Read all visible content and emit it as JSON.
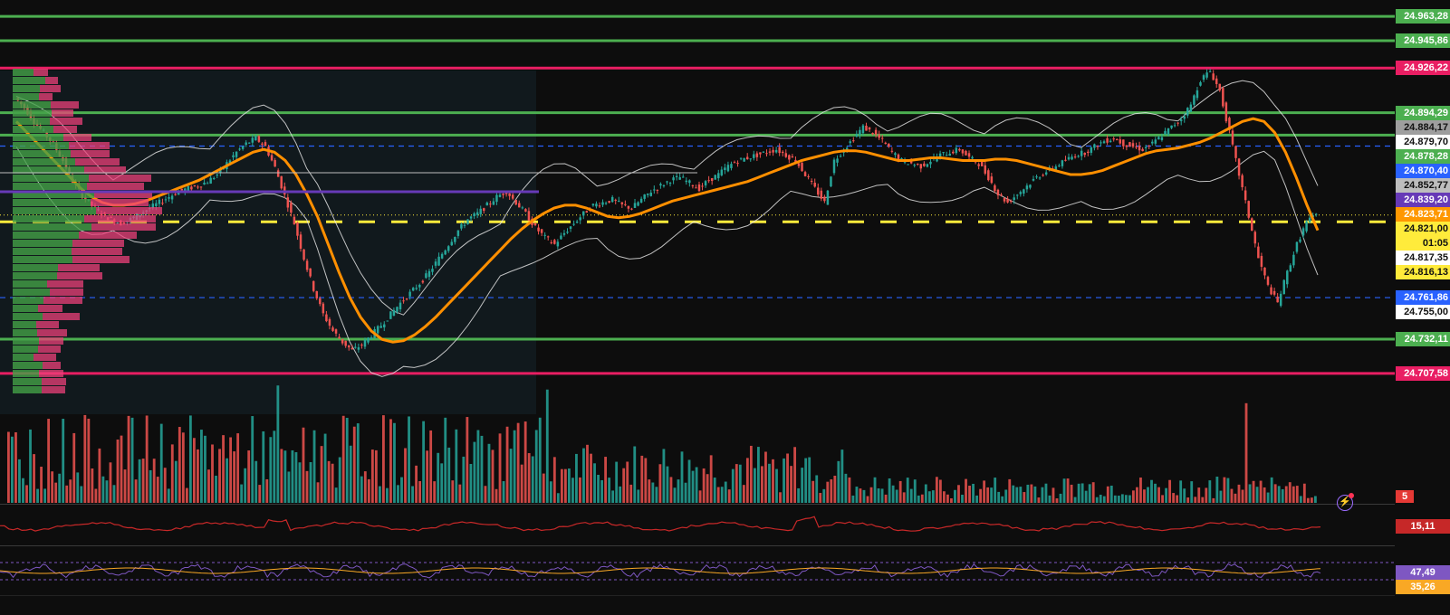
{
  "price_labels": [
    {
      "text": "24.963,28",
      "bg": "#4caf50",
      "fg": "#ffffff",
      "price": 24963.28
    },
    {
      "text": "24.945,86",
      "bg": "#4caf50",
      "fg": "#ffffff",
      "price": 24945.86
    },
    {
      "text": "24.926,22",
      "bg": "#e91e63",
      "fg": "#ffffff",
      "price": 24926.22
    },
    {
      "text": "24.894,29",
      "bg": "#4caf50",
      "fg": "#ffffff",
      "price": 24894.29
    },
    {
      "text": "24.884,17",
      "bg": "#9e9e9e",
      "fg": "#111111",
      "price": 24884.17
    },
    {
      "text": "24.879,70",
      "bg": "#ffffff",
      "fg": "#111111",
      "price": 24879.7
    },
    {
      "text": "24.878,28",
      "bg": "#4caf50",
      "fg": "#ffffff",
      "price": 24878.28
    },
    {
      "text": "24.870,40",
      "bg": "#2962ff",
      "fg": "#ffffff",
      "price": 24870.4
    },
    {
      "text": "24.852,77",
      "bg": "#bdbdbd",
      "fg": "#111111",
      "price": 24852.77
    },
    {
      "text": "24.839,20",
      "bg": "#673ab7",
      "fg": "#ffffff",
      "price": 24839.2
    },
    {
      "text": "24.823,71",
      "bg": "#ff9800",
      "fg": "#ffffff",
      "price": 24823.71
    },
    {
      "text": "24.821,00",
      "bg": "#ffeb3b",
      "fg": "#111111",
      "price": 24821.0
    },
    {
      "text": "01:05",
      "bg": "#ffeb3b",
      "fg": "#111111",
      "price": null
    },
    {
      "text": "24.817,35",
      "bg": "#ffffff",
      "fg": "#111111",
      "price": 24817.35
    },
    {
      "text": "24.816,13",
      "bg": "#ffeb3b",
      "fg": "#111111",
      "price": 24816.13
    },
    {
      "text": "24.761,86",
      "bg": "#2962ff",
      "fg": "#ffffff",
      "price": 24761.86
    },
    {
      "text": "24.755,00",
      "bg": "#ffffff",
      "fg": "#111111",
      "price": 24755.0
    },
    {
      "text": "24.732,11",
      "bg": "#4caf50",
      "fg": "#ffffff",
      "price": 24732.11
    },
    {
      "text": "24.707,58",
      "bg": "#e91e63",
      "fg": "#ffffff",
      "price": 24707.58
    }
  ],
  "horizontal_levels": [
    {
      "price": 24963.28,
      "color": "#4caf50",
      "style": "solid"
    },
    {
      "price": 24945.86,
      "color": "#4caf50",
      "style": "solid"
    },
    {
      "price": 24926.22,
      "color": "#e91e63",
      "style": "solid"
    },
    {
      "price": 24894.29,
      "color": "#4caf50",
      "style": "solid"
    },
    {
      "price": 24878.28,
      "color": "#4caf50",
      "style": "solid"
    },
    {
      "price": 24870.4,
      "color": "#2962ff",
      "style": "dashed"
    },
    {
      "price": 24816.13,
      "color": "#ffeb3b",
      "style": "dashed-thick"
    },
    {
      "price": 24761.86,
      "color": "#2962ff",
      "style": "dashed"
    },
    {
      "price": 24732.11,
      "color": "#4caf50",
      "style": "solid"
    },
    {
      "price": 24707.58,
      "color": "#e91e63",
      "style": "solid"
    }
  ],
  "volume_label": {
    "text": "5",
    "bg": "#e53935"
  },
  "adx_label": {
    "text": "15,11",
    "bg": "#c62828"
  },
  "rsi_labels": [
    {
      "text": "47,49",
      "bg": "#7e57c2"
    },
    {
      "text": "35,26",
      "bg": "#f9a825"
    }
  ],
  "colors": {
    "up": "#26a69a",
    "down": "#ef5350",
    "ma": "#ff8f00",
    "band": "#e0e0e0",
    "poc": "#673ab7"
  },
  "chart_data": {
    "type": "line",
    "y_range": [
      24690,
      24975
    ],
    "close": [
      24905,
      24898,
      24888,
      24880,
      24872,
      24860,
      24845,
      24835,
      24828,
      24822,
      24818,
      24815,
      24818,
      24822,
      24826,
      24830,
      24834,
      24838,
      24840,
      24842,
      24845,
      24850,
      24858,
      24866,
      24872,
      24876,
      24870,
      24855,
      24835,
      24815,
      24790,
      24768,
      24750,
      24738,
      24730,
      24724,
      24728,
      24735,
      24742,
      24750,
      24758,
      24765,
      24772,
      24780,
      24790,
      24800,
      24810,
      24818,
      24822,
      24828,
      24834,
      24838,
      24830,
      24822,
      24812,
      24805,
      24800,
      24808,
      24815,
      24822,
      24828,
      24830,
      24832,
      24828,
      24826,
      24832,
      24838,
      24842,
      24846,
      24848,
      24844,
      24840,
      24846,
      24850,
      24856,
      24860,
      24862,
      24864,
      24866,
      24868,
      24864,
      24860,
      24850,
      24840,
      24830,
      24860,
      24868,
      24876,
      24884,
      24880,
      24874,
      24866,
      24860,
      24858,
      24856,
      24860,
      24864,
      24866,
      24868,
      24862,
      24858,
      24848,
      24836,
      24830,
      24836,
      24842,
      24848,
      24852,
      24856,
      24860,
      24864,
      24866,
      24870,
      24874,
      24876,
      24872,
      24870,
      24868,
      24872,
      24878,
      24884,
      24890,
      24900,
      24918,
      24924,
      24910,
      24880,
      24850,
      24820,
      24790,
      24770,
      24758,
      24780,
      24800,
      24816,
      24821
    ],
    "sma": [
      24888,
      24880,
      24872,
      24864,
      24856,
      24848,
      24840,
      24834,
      24830,
      24828,
      24828,
      24829,
      24831,
      24834,
      24837,
      24840,
      24843,
      24846,
      24850,
      24854,
      24858,
      24862,
      24866,
      24868,
      24866,
      24860,
      24850,
      24836,
      24820,
      24800,
      24780,
      24762,
      24748,
      24738,
      24732,
      24730,
      24731,
      24735,
      24741,
      24748,
      24756,
      24764,
      24772,
      24780,
      24788,
      24796,
      24804,
      24811,
      24817,
      24822,
      24826,
      24828,
      24828,
      24826,
      24823,
      24820,
      24819,
      24820,
      24822,
      24825,
      24828,
      24831,
      24833,
      24835,
      24837,
      24839,
      24841,
      24843,
      24845,
      24848,
      24851,
      24854,
      24857,
      24860,
      24862,
      24864,
      24866,
      24867,
      24867,
      24866,
      24864,
      24862,
      24860,
      24860,
      24861,
      24862,
      24862,
      24861,
      24860,
      24860,
      24860,
      24861,
      24861,
      24860,
      24858,
      24856,
      24854,
      24852,
      24850,
      24850,
      24851,
      24853,
      24856,
      24859,
      24862,
      24865,
      24867,
      24868,
      24869,
      24871,
      24873,
      24876,
      24880,
      24884,
      24888,
      24890,
      24888,
      24880,
      24866,
      24848,
      24828,
      24810
    ],
    "volume_scale": [
      0,
      100
    ],
    "adx_value": 15.11,
    "rsi": 47.49,
    "rsi_ma": 35.26,
    "last_price": 24821.0,
    "countdown": "01:05"
  }
}
